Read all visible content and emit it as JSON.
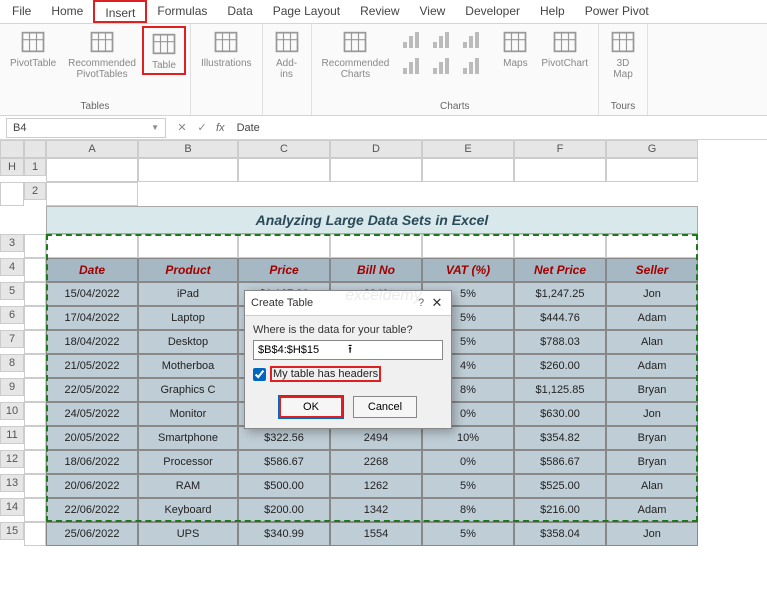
{
  "tabs": [
    "File",
    "Home",
    "Insert",
    "Formulas",
    "Data",
    "Page Layout",
    "Review",
    "View",
    "Developer",
    "Help",
    "Power Pivot"
  ],
  "active_tab": 2,
  "ribbon": {
    "groups": [
      {
        "label": "Tables",
        "items": [
          {
            "name": "pivottable",
            "label": "PivotTable"
          },
          {
            "name": "recommended-pivot",
            "label": "Recommended\nPivotTables"
          },
          {
            "name": "table",
            "label": "Table",
            "highlight": true
          }
        ]
      },
      {
        "label": "",
        "items": [
          {
            "name": "illustrations",
            "label": "Illustrations"
          }
        ]
      },
      {
        "label": "",
        "items": [
          {
            "name": "addins",
            "label": "Add-\nins"
          }
        ]
      },
      {
        "label": "Charts",
        "items": [
          {
            "name": "recommended-charts",
            "label": "Recommended\nCharts"
          },
          {
            "name": "chart-types",
            "label": ""
          },
          {
            "name": "maps",
            "label": "Maps"
          },
          {
            "name": "pivotchart",
            "label": "PivotChart"
          }
        ]
      },
      {
        "label": "Tours",
        "items": [
          {
            "name": "3dmap",
            "label": "3D\nMap"
          }
        ]
      }
    ]
  },
  "namebox": "B4",
  "formula_value": "Date",
  "columns": [
    "A",
    "B",
    "C",
    "D",
    "E",
    "F",
    "G",
    "H"
  ],
  "title": "Analyzing Large Data Sets in Excel",
  "headers": [
    "Date",
    "Product",
    "Price",
    "Bill No",
    "VAT (%)",
    "Net Price",
    "Seller"
  ],
  "rows": [
    [
      "15/04/2022",
      "iPad",
      "$1,187.86",
      "2846",
      "5%",
      "$1,247.25",
      "Jon"
    ],
    [
      "17/04/2022",
      "Laptop",
      "",
      "",
      "5%",
      "$444.76",
      "Adam"
    ],
    [
      "18/04/2022",
      "Desktop",
      "",
      "",
      "5%",
      "$788.03",
      "Alan"
    ],
    [
      "21/05/2022",
      "Motherboa",
      "",
      "",
      "4%",
      "$260.00",
      "Adam"
    ],
    [
      "22/05/2022",
      "Graphics C",
      "",
      "",
      "8%",
      "$1,125.85",
      "Bryan"
    ],
    [
      "24/05/2022",
      "Monitor",
      "",
      "",
      "0%",
      "$630.00",
      "Jon"
    ],
    [
      "20/05/2022",
      "Smartphone",
      "$322.56",
      "2494",
      "10%",
      "$354.82",
      "Bryan"
    ],
    [
      "18/06/2022",
      "Processor",
      "$586.67",
      "2268",
      "0%",
      "$586.67",
      "Bryan"
    ],
    [
      "20/06/2022",
      "RAM",
      "$500.00",
      "1262",
      "5%",
      "$525.00",
      "Alan"
    ],
    [
      "22/06/2022",
      "Keyboard",
      "$200.00",
      "1342",
      "8%",
      "$216.00",
      "Adam"
    ],
    [
      "25/06/2022",
      "UPS",
      "$340.99",
      "1554",
      "5%",
      "$358.04",
      "Jon"
    ]
  ],
  "dialog": {
    "title": "Create Table",
    "prompt": "Where is the data for your table?",
    "range": "$B$4:$H$15",
    "checkbox_label": "My table has headers",
    "ok": "OK",
    "cancel": "Cancel"
  },
  "watermark": "exceldemy",
  "colors": {
    "highlight": "#e02020",
    "header_bg": "#a6b8c3",
    "header_fg": "#a00000",
    "data_bg": "#bfcdd6",
    "title_bg": "#d9e8ea"
  }
}
